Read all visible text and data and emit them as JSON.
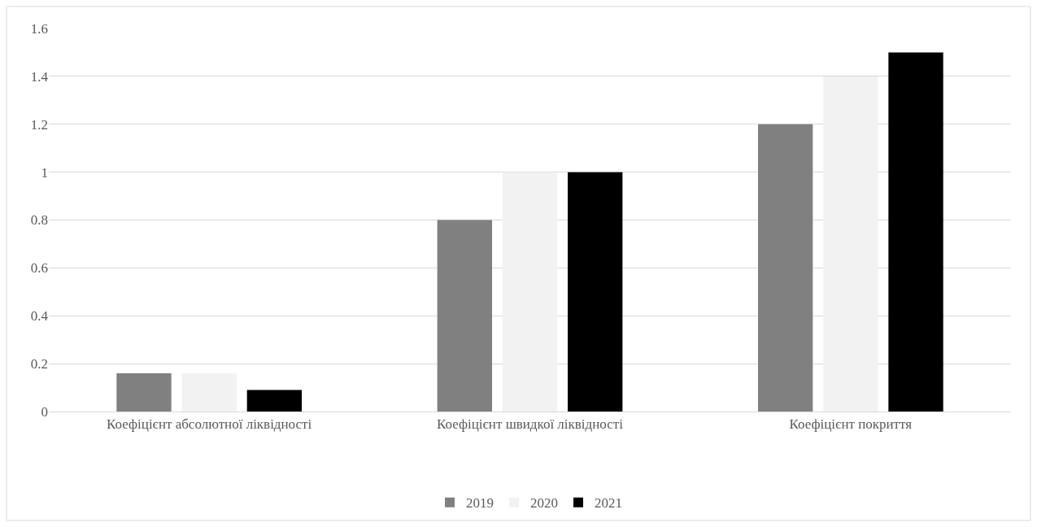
{
  "chart_data": {
    "type": "bar",
    "categories": [
      "Коефіцієнт абсолютної ліквідності",
      "Коефіцієнт швидкої ліквідності",
      "Коефіцієнт покриття"
    ],
    "series": [
      {
        "name": "2019",
        "color": "#808080",
        "values": [
          0.16,
          0.8,
          1.2
        ]
      },
      {
        "name": "2020",
        "color": "#f2f2f2",
        "values": [
          0.16,
          1.0,
          1.4
        ]
      },
      {
        "name": "2021",
        "color": "#000000",
        "values": [
          0.09,
          1.0,
          1.5
        ]
      }
    ],
    "ylim": [
      0,
      1.6
    ],
    "yticks": [
      0,
      0.2,
      0.4,
      0.6,
      0.8,
      1,
      1.2,
      1.4,
      1.6
    ],
    "grid": "y",
    "legend": "bottom"
  }
}
